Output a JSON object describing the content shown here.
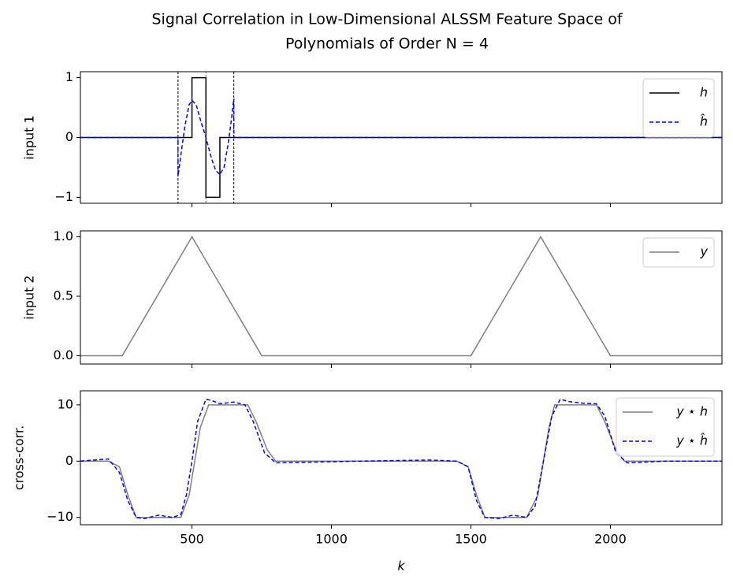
{
  "title": [
    "Signal Correlation in Low-Dimensional ALSSM Feature Space of",
    "Polynomials of Order N = 4"
  ],
  "chart_data": [
    {
      "type": "line",
      "ylabel": "input 1",
      "xlim": [
        100,
        2400
      ],
      "xticks": [
        500,
        1000,
        1500,
        2000
      ],
      "xticklabels": false,
      "ylim": [
        -1.1,
        1.1
      ],
      "yticks": [
        {
          "value": -1,
          "label": "−1"
        },
        0,
        1
      ],
      "grid": false,
      "legend": "upper right",
      "vlines": [
        450,
        550,
        650
      ],
      "vline_colors": [
        "#000000",
        "#d62728",
        "#000000"
      ],
      "series": [
        {
          "name": "h",
          "color": "#000000",
          "dashed": false,
          "x": [
            100,
            500,
            500,
            550,
            550,
            600,
            600,
            2400
          ],
          "values": [
            0,
            0,
            1,
            1,
            -1,
            -1,
            0,
            0
          ]
        },
        {
          "name": "ĥ",
          "color": "#0000ff",
          "dashed": true,
          "x": [
            100,
            450,
            450,
            460,
            475,
            490,
            500,
            515,
            530,
            550,
            570,
            585,
            600,
            615,
            630,
            640,
            650,
            650,
            2400
          ],
          "values": [
            0,
            0,
            -0.65,
            -0.3,
            0.2,
            0.55,
            0.62,
            0.55,
            0.3,
            0,
            -0.35,
            -0.55,
            -0.62,
            -0.5,
            -0.1,
            0.25,
            0.65,
            0,
            0
          ]
        }
      ]
    },
    {
      "type": "line",
      "ylabel": "input 2",
      "xlim": [
        100,
        2400
      ],
      "xticks": [
        500,
        1000,
        1500,
        2000
      ],
      "xticklabels": false,
      "ylim": [
        -0.07,
        1.05
      ],
      "yticks": [
        {
          "value": 0,
          "label": "0.0"
        },
        0.5,
        {
          "value": 1,
          "label": "1.0"
        }
      ],
      "grid": false,
      "legend": "upper right",
      "series": [
        {
          "name": "y",
          "color": "#808080",
          "dashed": false,
          "x": [
            100,
            250,
            500,
            750,
            1500,
            1750,
            2000,
            2400
          ],
          "values": [
            0,
            0,
            1,
            0,
            0,
            1,
            0,
            0
          ]
        }
      ]
    },
    {
      "type": "line",
      "ylabel": "cross-corr.",
      "xlabel": "k",
      "xlim": [
        100,
        2400
      ],
      "xticks": [
        500,
        1000,
        1500,
        2000
      ],
      "xticklabels": true,
      "ylim": [
        -11.3,
        12.5
      ],
      "yticks": [
        {
          "value": -10,
          "label": "−10"
        },
        0,
        10
      ],
      "grid": false,
      "legend": "upper right",
      "series": [
        {
          "name": "y ⋆ h",
          "color": "#808080",
          "dashed": false,
          "x": [
            100,
            200,
            240,
            270,
            300,
            460,
            490,
            510,
            530,
            560,
            700,
            730,
            770,
            800,
            1450,
            1490,
            1520,
            1550,
            1700,
            1740,
            1760,
            1780,
            1800,
            1950,
            1980,
            2020,
            2050,
            2400
          ],
          "values": [
            0,
            0,
            -1,
            -6,
            -10,
            -10,
            -6,
            0,
            6,
            10,
            10,
            7,
            2,
            0,
            0,
            -1,
            -6,
            -10,
            -10,
            -6,
            0,
            6,
            10,
            10,
            7,
            2,
            0,
            0
          ]
        },
        {
          "name": "y ⋆ ĥ",
          "color": "#0000ff",
          "dashed": true,
          "x": [
            100,
            150,
            200,
            240,
            270,
            300,
            330,
            380,
            430,
            460,
            480,
            500,
            520,
            550,
            570,
            600,
            650,
            690,
            720,
            760,
            800,
            900,
            1100,
            1350,
            1450,
            1490,
            1520,
            1550,
            1600,
            1650,
            1700,
            1730,
            1760,
            1790,
            1820,
            1850,
            1900,
            1950,
            1980,
            2020,
            2060,
            2200,
            2400
          ],
          "values": [
            0,
            0.2,
            0.4,
            -2,
            -7,
            -10,
            -10.2,
            -9.6,
            -10,
            -9.5,
            -6,
            0,
            7,
            11,
            10.8,
            10.2,
            10.5,
            10,
            7,
            1.5,
            -0.3,
            -0.2,
            0,
            0.2,
            0,
            -1,
            -7,
            -10,
            -10.2,
            -9.6,
            -10,
            -8,
            0,
            8,
            11,
            10.6,
            10.3,
            10.2,
            8,
            1.5,
            -0.3,
            0,
            0
          ]
        }
      ]
    }
  ]
}
